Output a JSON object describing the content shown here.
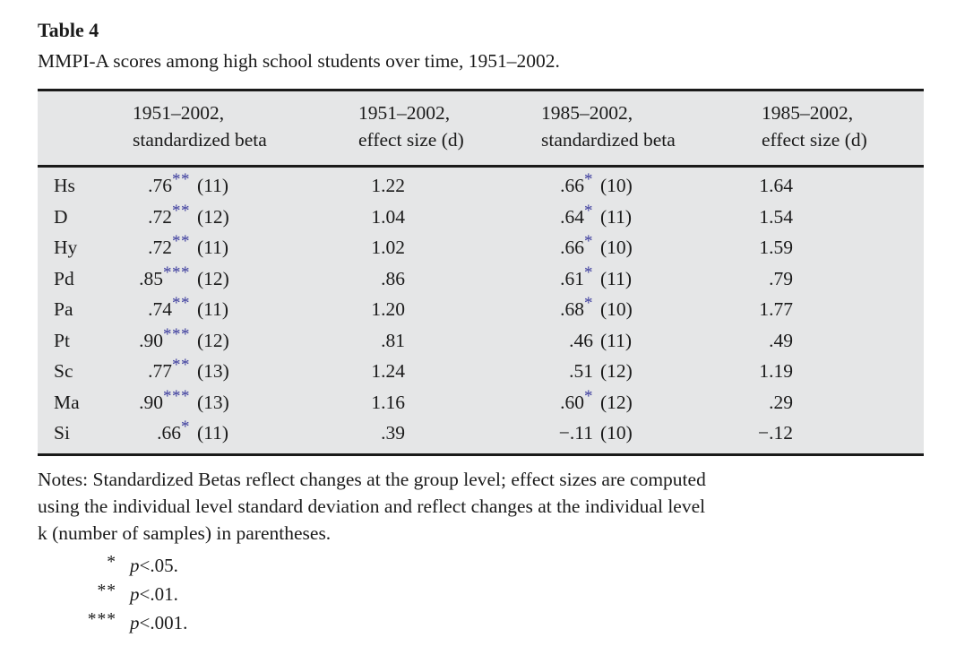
{
  "table": {
    "title": "Table 4",
    "caption": "MMPI-A scores among high school students over time, 1951–2002.",
    "columns": [
      {
        "line1": "1951–2002,",
        "line2": "standardized beta"
      },
      {
        "line1": "1951–2002,",
        "line2": "effect size (d)"
      },
      {
        "line1": "1985–2002,",
        "line2": "standardized beta"
      },
      {
        "line1": "1985–2002,",
        "line2": "effect size (d)"
      }
    ],
    "rows": [
      {
        "label": "Hs",
        "beta1": ".76",
        "ast1": "**",
        "k1": "(11)",
        "es1": "1.22",
        "beta2": ".66",
        "ast2": "*",
        "k2": "(10)",
        "es2": "1.64"
      },
      {
        "label": "D",
        "beta1": ".72",
        "ast1": "**",
        "k1": "(12)",
        "es1": "1.04",
        "beta2": ".64",
        "ast2": "*",
        "k2": "(11)",
        "es2": "1.54"
      },
      {
        "label": "Hy",
        "beta1": ".72",
        "ast1": "**",
        "k1": "(11)",
        "es1": "1.02",
        "beta2": ".66",
        "ast2": "*",
        "k2": "(10)",
        "es2": "1.59"
      },
      {
        "label": "Pd",
        "beta1": ".85",
        "ast1": "***",
        "k1": "(12)",
        "es1": ".86",
        "beta2": ".61",
        "ast2": "*",
        "k2": "(11)",
        "es2": ".79"
      },
      {
        "label": "Pa",
        "beta1": ".74",
        "ast1": "**",
        "k1": "(11)",
        "es1": "1.20",
        "beta2": ".68",
        "ast2": "*",
        "k2": "(10)",
        "es2": "1.77"
      },
      {
        "label": "Pt",
        "beta1": ".90",
        "ast1": "***",
        "k1": "(12)",
        "es1": ".81",
        "beta2": ".46",
        "ast2": "",
        "k2": "(11)",
        "es2": ".49"
      },
      {
        "label": "Sc",
        "beta1": ".77",
        "ast1": "**",
        "k1": "(13)",
        "es1": "1.24",
        "beta2": ".51",
        "ast2": "",
        "k2": "(12)",
        "es2": "1.19"
      },
      {
        "label": "Ma",
        "beta1": ".90",
        "ast1": "***",
        "k1": "(13)",
        "es1": "1.16",
        "beta2": ".60",
        "ast2": "*",
        "k2": "(12)",
        "es2": ".29"
      },
      {
        "label": "Si",
        "beta1": ".66",
        "ast1": "*",
        "k1": "(11)",
        "es1": ".39",
        "beta2": "−.11",
        "ast2": "",
        "k2": "(10)",
        "es2": "−.12"
      }
    ]
  },
  "notes": {
    "lines": [
      "Notes: Standardized Betas reflect changes at the group level; effect sizes are computed",
      "using the individual level standard deviation and reflect changes at the individual level",
      "k (number of samples) in parentheses."
    ]
  },
  "footnotes": [
    {
      "marker": "*",
      "p": "p",
      "cond": "<.05."
    },
    {
      "marker": "**",
      "p": "p",
      "cond": "<.01."
    },
    {
      "marker": "***",
      "p": "p",
      "cond": "<.001."
    }
  ],
  "colors": {
    "asterisk_blue": "#3d3d9e",
    "table_background": "#e5e6e7",
    "rule_black": "#1a1a1a"
  }
}
